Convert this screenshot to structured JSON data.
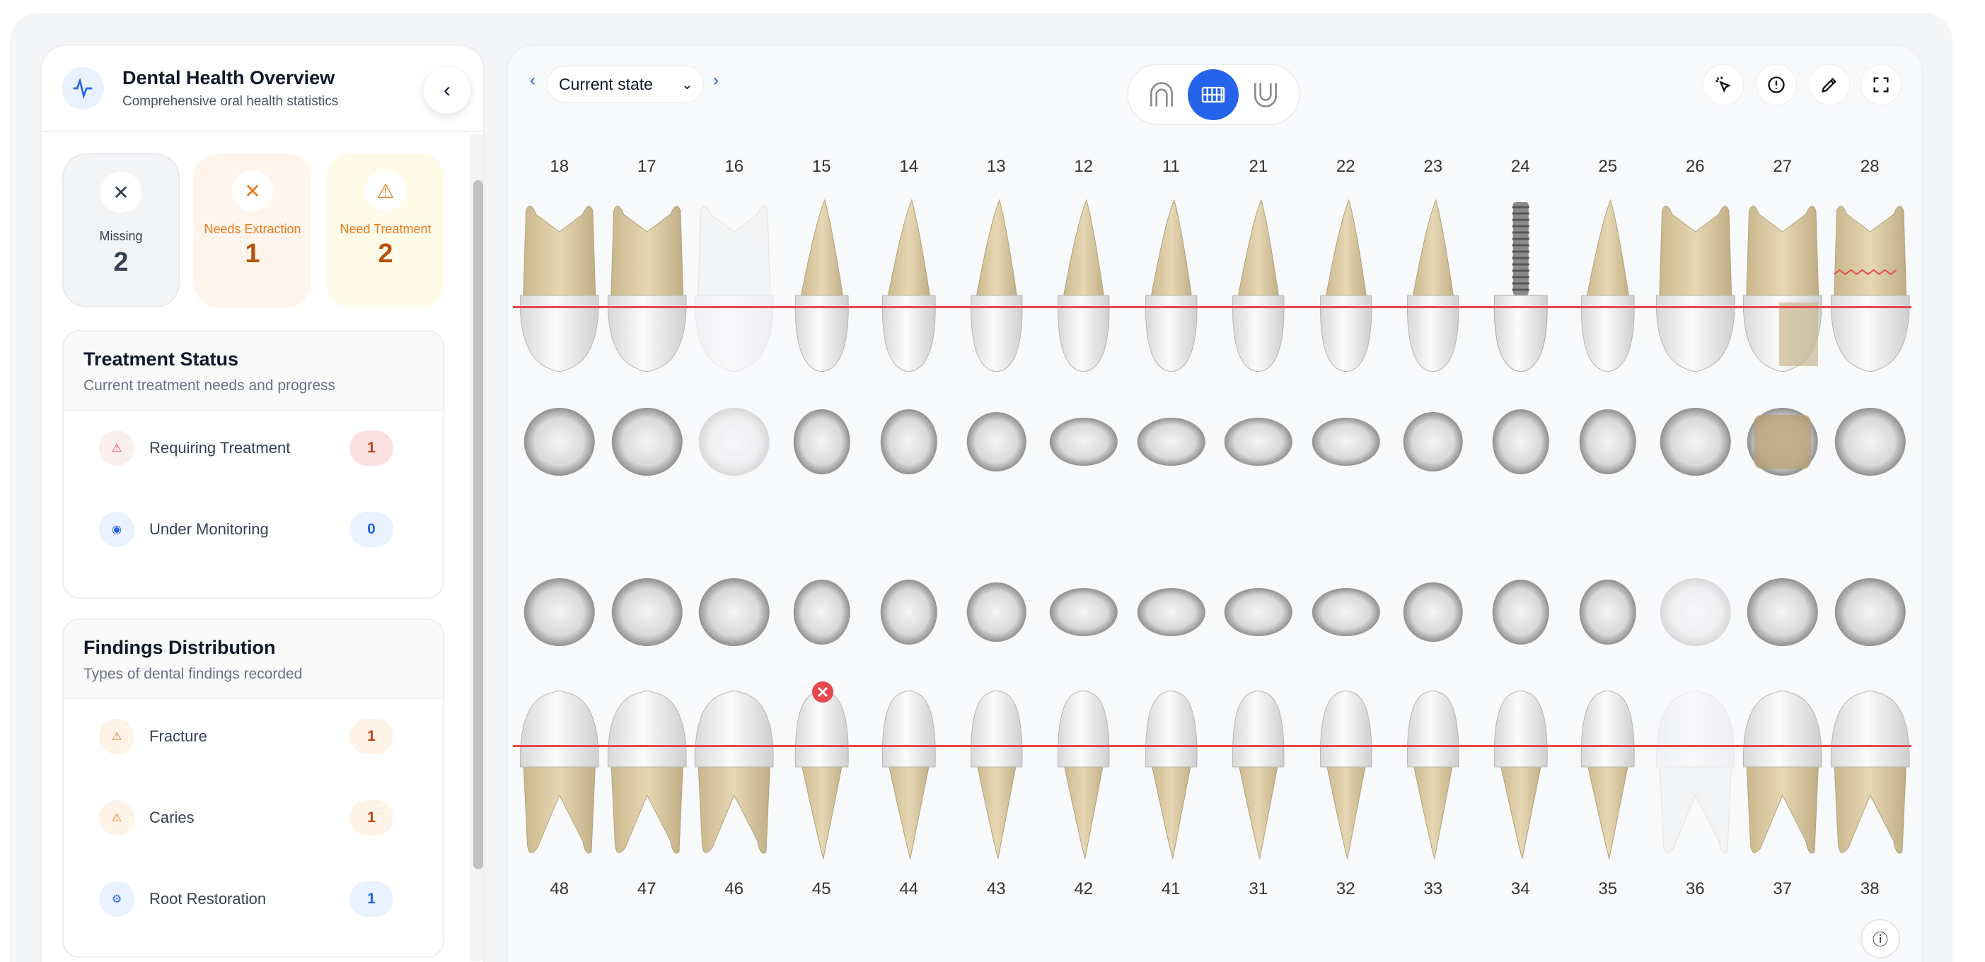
{
  "sidebar": {
    "title": "Dental Health Overview",
    "subtitle": "Comprehensive oral health statistics",
    "stats": [
      {
        "label": "Missing",
        "value": "2",
        "icon": "x-icon"
      },
      {
        "label": "Needs Extraction",
        "value": "1",
        "icon": "x-icon"
      },
      {
        "label": "Need Treatment",
        "value": "2",
        "icon": "warning-icon"
      }
    ],
    "treatment": {
      "title": "Treatment Status",
      "subtitle": "Current treatment needs and progress",
      "items": [
        {
          "label": "Requiring Treatment",
          "value": "1",
          "icon": "warning-icon"
        },
        {
          "label": "Under Monitoring",
          "value": "0",
          "icon": "eye-icon"
        }
      ]
    },
    "findings": {
      "title": "Findings Distribution",
      "subtitle": "Types of dental findings recorded",
      "items": [
        {
          "label": "Fracture",
          "value": "1",
          "icon": "warning-icon"
        },
        {
          "label": "Caries",
          "value": "1",
          "icon": "warning-icon"
        },
        {
          "label": "Root Restoration",
          "value": "1",
          "icon": "gear-icon"
        }
      ]
    }
  },
  "toolbar": {
    "state": "Current state",
    "active_view": "both-arches"
  },
  "colors": {
    "accent": "#2563eb",
    "danger": "#e5484d",
    "warning": "#ea7a1c",
    "root": "#dccaa0"
  },
  "upper": [
    {
      "n": "18",
      "state": "present"
    },
    {
      "n": "17",
      "state": "present"
    },
    {
      "n": "16",
      "state": "missing"
    },
    {
      "n": "15",
      "state": "present"
    },
    {
      "n": "14",
      "state": "present"
    },
    {
      "n": "13",
      "state": "present"
    },
    {
      "n": "12",
      "state": "present"
    },
    {
      "n": "11",
      "state": "present"
    },
    {
      "n": "21",
      "state": "present"
    },
    {
      "n": "22",
      "state": "present"
    },
    {
      "n": "23",
      "state": "present"
    },
    {
      "n": "24",
      "state": "implant"
    },
    {
      "n": "25",
      "state": "present"
    },
    {
      "n": "26",
      "state": "present"
    },
    {
      "n": "27",
      "state": "restoration"
    },
    {
      "n": "28",
      "state": "caries"
    }
  ],
  "lower": [
    {
      "n": "48",
      "state": "present"
    },
    {
      "n": "47",
      "state": "present"
    },
    {
      "n": "46",
      "state": "present"
    },
    {
      "n": "45",
      "state": "extraction"
    },
    {
      "n": "44",
      "state": "present"
    },
    {
      "n": "43",
      "state": "present"
    },
    {
      "n": "42",
      "state": "present"
    },
    {
      "n": "41",
      "state": "present"
    },
    {
      "n": "31",
      "state": "present"
    },
    {
      "n": "32",
      "state": "present"
    },
    {
      "n": "33",
      "state": "present"
    },
    {
      "n": "34",
      "state": "present"
    },
    {
      "n": "35",
      "state": "present"
    },
    {
      "n": "36",
      "state": "missing"
    },
    {
      "n": "37",
      "state": "present"
    },
    {
      "n": "38",
      "state": "present"
    }
  ]
}
